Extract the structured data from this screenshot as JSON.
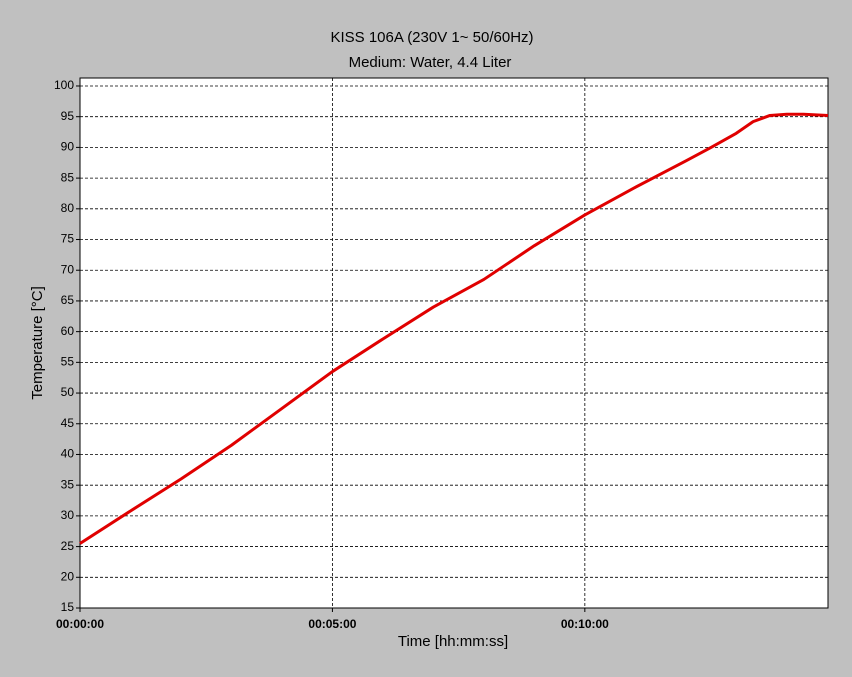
{
  "chart_data": {
    "type": "line",
    "title": "KISS 106A (230V 1~ 50/60Hz)",
    "subtitle": "Medium: Water, 4.4 Liter",
    "x_label": "Time [hh:mm:ss]",
    "y_label": "Temperature [°C]",
    "x": [
      0,
      60,
      120,
      180,
      240,
      300,
      360,
      420,
      480,
      540,
      600,
      660,
      720,
      750,
      780,
      800,
      820,
      840,
      860,
      889
    ],
    "series": [
      {
        "name": "Temperature",
        "color": "#e00000",
        "values": [
          25.5,
          30.8,
          36,
          41.5,
          47.5,
          53.5,
          58.8,
          64,
          68.5,
          74,
          79,
          83.5,
          87.8,
          90,
          92.3,
          94.2,
          95.2,
          95.4,
          95.4,
          95.2
        ]
      }
    ],
    "xlim": [
      0,
      889
    ],
    "ylim": [
      15,
      101.3
    ],
    "xticks": [
      {
        "value": 0,
        "label": "00:00:00"
      },
      {
        "value": 300,
        "label": "00:05:00"
      },
      {
        "value": 600,
        "label": "00:10:00"
      }
    ],
    "yticks": [
      15,
      20,
      25,
      30,
      35,
      40,
      45,
      50,
      55,
      60,
      65,
      70,
      75,
      80,
      85,
      90,
      95,
      100
    ],
    "grid": true
  }
}
